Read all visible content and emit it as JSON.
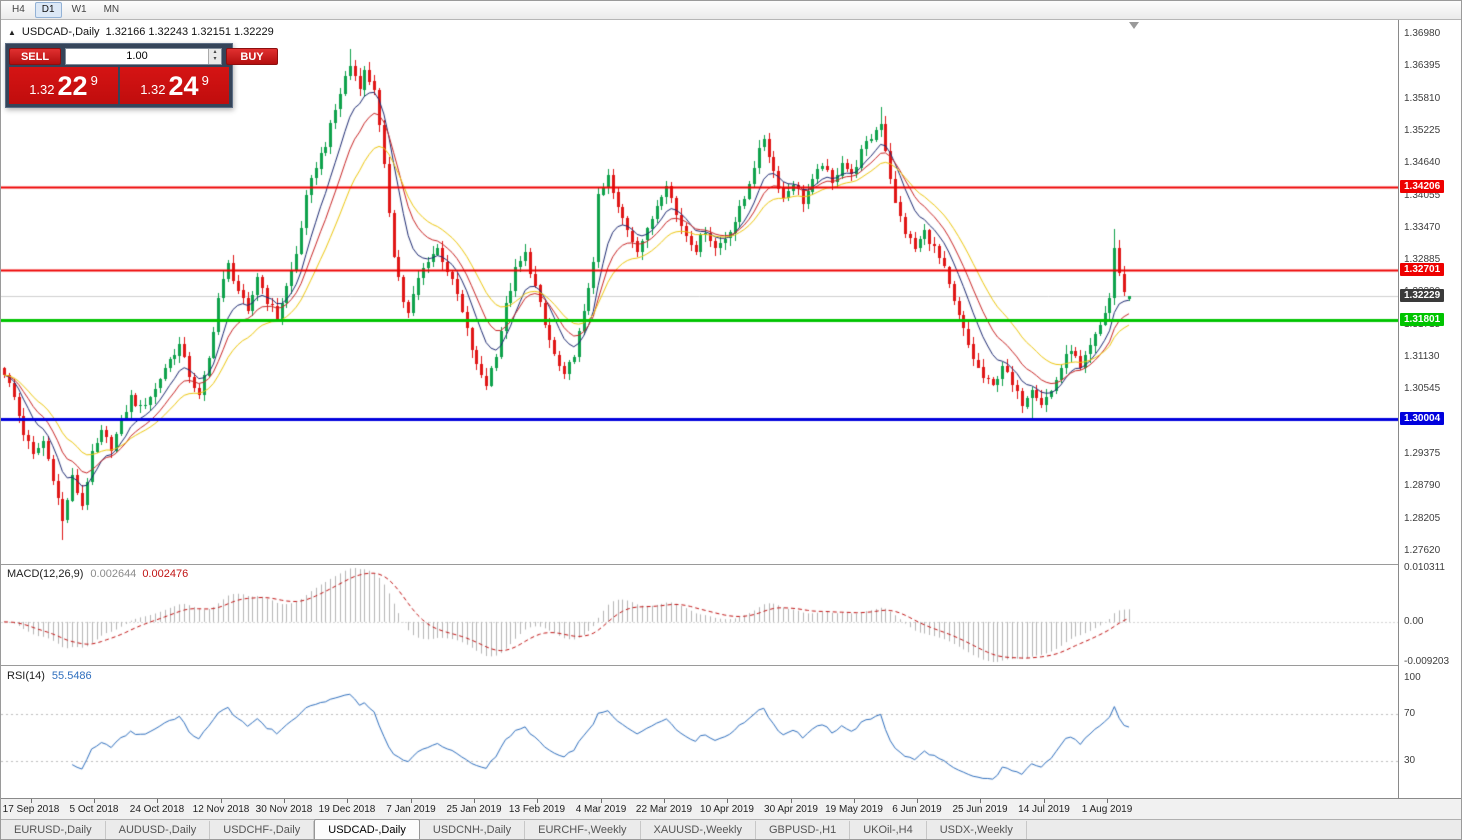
{
  "toolbar": {
    "timeframes": [
      {
        "label": "H4",
        "active": false
      },
      {
        "label": "D1",
        "active": true
      },
      {
        "label": "W1",
        "active": false
      },
      {
        "label": "MN",
        "active": false
      }
    ]
  },
  "symbol_line": {
    "collapse_icon": "▲",
    "title": "USDCAD-,Daily",
    "ohlc": "1.32166 1.32243 1.32151 1.32229"
  },
  "trade_panel": {
    "sell_label": "SELL",
    "buy_label": "BUY",
    "volume": "1.00",
    "spin_up": "▴",
    "spin_down": "▾",
    "sell_price": {
      "prefix": "1.32",
      "big": "22",
      "sup": "9"
    },
    "buy_price": {
      "prefix": "1.32",
      "big": "24",
      "sup": "9"
    }
  },
  "price_axis": {
    "ticks": [
      "1.36980",
      "1.36395",
      "1.35810",
      "1.35225",
      "1.34640",
      "1.34055",
      "1.33470",
      "1.32885",
      "1.32300",
      "1.31715",
      "1.31130",
      "1.30545",
      "1.29960",
      "1.29375",
      "1.28790",
      "1.28205",
      "1.27620"
    ]
  },
  "indicators": {
    "macd": {
      "name": "MACD(12,26,9)",
      "value_main": "0.002644",
      "value_signal": "0.002476",
      "axis_top": "0.010311",
      "axis_zero": "0.00",
      "axis_bottom": "-0.009203"
    },
    "rsi": {
      "name": "RSI(14)",
      "value": "55.5486",
      "axis": [
        "100",
        "70",
        "30"
      ]
    }
  },
  "time_axis": {
    "labels": [
      "17 Sep 2018",
      "5 Oct 2018",
      "24 Oct 2018",
      "12 Nov 2018",
      "30 Nov 2018",
      "19 Dec 2018",
      "7 Jan 2019",
      "25 Jan 2019",
      "13 Feb 2019",
      "4 Mar 2019",
      "22 Mar 2019",
      "10 Apr 2019",
      "30 Apr 2019",
      "19 May 2019",
      "6 Jun 2019",
      "25 Jun 2019",
      "14 Jul 2019",
      "1 Aug 2019"
    ],
    "first_bar_index": 5.5,
    "step_bars": 13
  },
  "tabs": {
    "items": [
      {
        "label": "EURUSD-,Daily",
        "active": false
      },
      {
        "label": "AUDUSD-,Daily",
        "active": false
      },
      {
        "label": "USDCHF-,Daily",
        "active": false
      },
      {
        "label": "USDCAD-,Daily",
        "active": true
      },
      {
        "label": "USDCNH-,Daily",
        "active": false
      },
      {
        "label": "EURCHF-,Weekly",
        "active": false
      },
      {
        "label": "XAUUSD-,Weekly",
        "active": false
      },
      {
        "label": "GBPUSD-,H1",
        "active": false
      },
      {
        "label": "UKOil-,H4",
        "active": false
      },
      {
        "label": "USDX-,Weekly",
        "active": false
      }
    ]
  },
  "chart_data": {
    "type": "candlestick",
    "symbol": "USDCAD",
    "timeframe": "Daily",
    "bars_count": 232,
    "last_open": 1.32166,
    "last_high": 1.32243,
    "last_low": 1.32151,
    "last_close": 1.32229,
    "price_top_tick": 1.3698,
    "tick_step": 0.00585,
    "close_anchors": [
      [
        0,
        1.3085
      ],
      [
        2,
        1.304
      ],
      [
        4,
        1.2975
      ],
      [
        6,
        1.2935
      ],
      [
        8,
        1.296
      ],
      [
        10,
        1.2895
      ],
      [
        12,
        1.2815
      ],
      [
        14,
        1.2895
      ],
      [
        16,
        1.2845
      ],
      [
        18,
        1.2935
      ],
      [
        20,
        1.2975
      ],
      [
        22,
        1.295
      ],
      [
        24,
        1.2995
      ],
      [
        26,
        1.304
      ],
      [
        28,
        1.302
      ],
      [
        31,
        1.3055
      ],
      [
        33,
        1.3095
      ],
      [
        36,
        1.3135
      ],
      [
        38,
        1.308
      ],
      [
        40,
        1.304
      ],
      [
        42,
        1.311
      ],
      [
        44,
        1.322
      ],
      [
        46,
        1.328
      ],
      [
        48,
        1.3235
      ],
      [
        50,
        1.319
      ],
      [
        52,
        1.326
      ],
      [
        54,
        1.3215
      ],
      [
        56,
        1.3185
      ],
      [
        58,
        1.324
      ],
      [
        60,
        1.33
      ],
      [
        62,
        1.34
      ],
      [
        64,
        1.346
      ],
      [
        66,
        1.35
      ],
      [
        68,
        1.356
      ],
      [
        70,
        1.362
      ],
      [
        71,
        1.364
      ],
      [
        73,
        1.3605
      ],
      [
        74,
        1.363
      ],
      [
        76,
        1.36
      ],
      [
        78,
        1.3455
      ],
      [
        80,
        1.33
      ],
      [
        82,
        1.3215
      ],
      [
        83,
        1.319
      ],
      [
        85,
        1.3255
      ],
      [
        87,
        1.329
      ],
      [
        89,
        1.331
      ],
      [
        91,
        1.327
      ],
      [
        93,
        1.3225
      ],
      [
        95,
        1.316
      ],
      [
        97,
        1.3095
      ],
      [
        99,
        1.3065
      ],
      [
        101,
        1.312
      ],
      [
        103,
        1.3205
      ],
      [
        105,
        1.327
      ],
      [
        107,
        1.33
      ],
      [
        109,
        1.324
      ],
      [
        111,
        1.317
      ],
      [
        113,
        1.3115
      ],
      [
        115,
        1.3075
      ],
      [
        117,
        1.312
      ],
      [
        119,
        1.319
      ],
      [
        121,
        1.329
      ],
      [
        122,
        1.34
      ],
      [
        124,
        1.344
      ],
      [
        126,
        1.338
      ],
      [
        128,
        1.3345
      ],
      [
        130,
        1.331
      ],
      [
        132,
        1.334
      ],
      [
        134,
        1.339
      ],
      [
        136,
        1.343
      ],
      [
        138,
        1.337
      ],
      [
        140,
        1.3335
      ],
      [
        142,
        1.331
      ],
      [
        144,
        1.3345
      ],
      [
        146,
        1.331
      ],
      [
        148,
        1.333
      ],
      [
        150,
        1.336
      ],
      [
        152,
        1.34
      ],
      [
        154,
        1.346
      ],
      [
        156,
        1.351
      ],
      [
        158,
        1.345
      ],
      [
        160,
        1.34
      ],
      [
        162,
        1.343
      ],
      [
        164,
        1.3395
      ],
      [
        166,
        1.343
      ],
      [
        168,
        1.3465
      ],
      [
        170,
        1.3425
      ],
      [
        172,
        1.347
      ],
      [
        174,
        1.344
      ],
      [
        176,
        1.3485
      ],
      [
        178,
        1.351
      ],
      [
        180,
        1.354
      ],
      [
        181,
        1.349
      ],
      [
        183,
        1.339
      ],
      [
        185,
        1.334
      ],
      [
        187,
        1.331
      ],
      [
        189,
        1.334
      ],
      [
        191,
        1.331
      ],
      [
        193,
        1.327
      ],
      [
        195,
        1.321
      ],
      [
        197,
        1.316
      ],
      [
        199,
        1.311
      ],
      [
        201,
        1.3075
      ],
      [
        203,
        1.306
      ],
      [
        205,
        1.31
      ],
      [
        207,
        1.306
      ],
      [
        209,
        1.303
      ],
      [
        211,
        1.306
      ],
      [
        213,
        1.303
      ],
      [
        215,
        1.305
      ],
      [
        217,
        1.3095
      ],
      [
        219,
        1.313
      ],
      [
        221,
        1.309
      ],
      [
        223,
        1.313
      ],
      [
        225,
        1.317
      ],
      [
        227,
        1.322
      ],
      [
        228,
        1.331
      ],
      [
        229,
        1.326
      ],
      [
        230,
        1.3235
      ],
      [
        231,
        1.32229
      ]
    ],
    "wick_extremes": [
      {
        "i": 12,
        "low": 1.2782
      },
      {
        "i": 71,
        "high": 1.367
      },
      {
        "i": 180,
        "high": 1.3565
      },
      {
        "i": 211,
        "low": 1.3002
      },
      {
        "i": 228,
        "high": 1.3345
      }
    ],
    "moving_averages": [
      {
        "period": 8,
        "color": "#1d2a72"
      },
      {
        "period": 13,
        "color": "#c92626"
      },
      {
        "period": 21,
        "color": "#edc70e"
      }
    ],
    "levels": [
      {
        "price": 1.34206,
        "label": "1.34206",
        "color": "#ee0000",
        "thickness": 2
      },
      {
        "price": 1.32701,
        "label": "1.32701",
        "color": "#ee0000",
        "thickness": 2
      },
      {
        "price": 1.31801,
        "label": "1.31801",
        "color": "#00c400",
        "thickness": 3
      },
      {
        "price": 1.30004,
        "label": "1.30004",
        "color": "#0000dd",
        "thickness": 3
      }
    ],
    "current_price": {
      "value": 1.32229,
      "label": "1.32229",
      "badge_color": "#3a3a3a",
      "line_color": "#cfcfcf"
    },
    "candle_up_color": "#0fa24c",
    "candle_down_color": "#e01616",
    "macd": {
      "fast": 12,
      "slow": 26,
      "signal": 9,
      "hist_color": "#b5b5b5",
      "signal_color": "#c11414",
      "zero_line_color": "#d5d5d5"
    },
    "rsi": {
      "period": 14,
      "color": "#2f6fbe",
      "levels": [
        70,
        30
      ],
      "level_color": "#bdbdbd"
    }
  }
}
